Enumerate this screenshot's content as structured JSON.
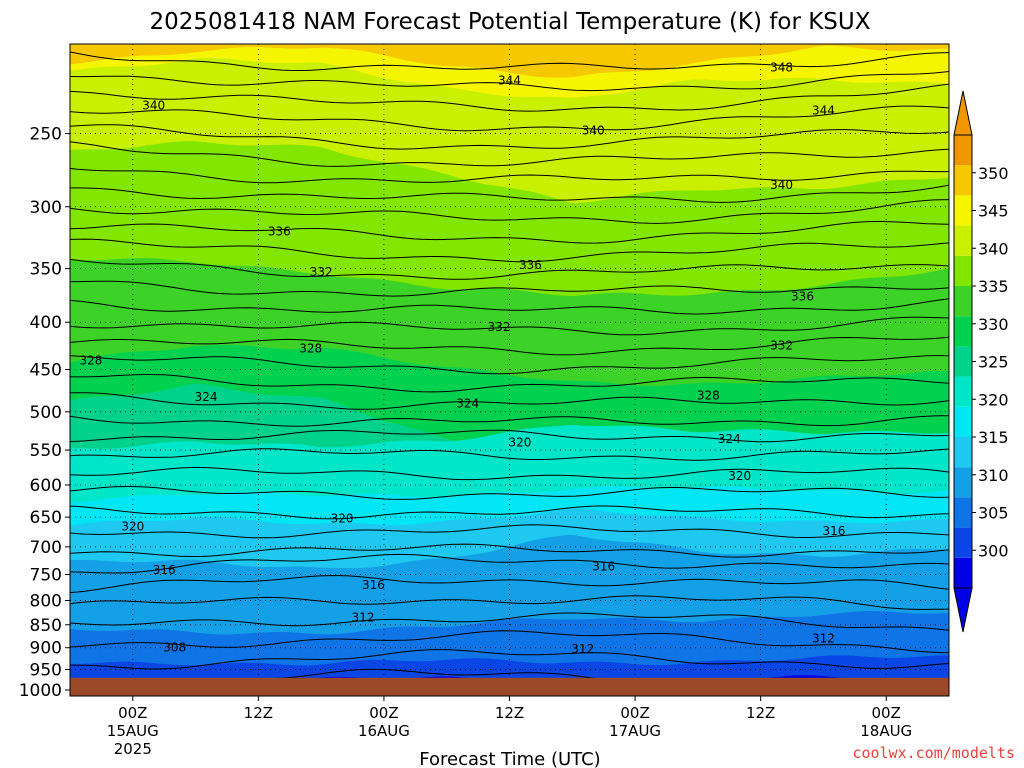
{
  "title": "2025081418 NAM Forecast Potential Temperature (K) for KSUX",
  "credit": "coolwx.com/modelts",
  "colors": {
    "ground": "#9a4a28",
    "levels": [
      "#0000e6",
      "#0a46e6",
      "#0f74e6",
      "#14a0e6",
      "#1ec8f0",
      "#00e6f5",
      "#00e6c8",
      "#00d28c",
      "#00d250",
      "#3cd228",
      "#82e600",
      "#c8f000",
      "#f5f500",
      "#f5c800",
      "#f09600"
    ]
  },
  "chart_data": {
    "type": "contour",
    "title": "2025081418 NAM Forecast Potential Temperature (K) for KSUX",
    "xlabel": "Forecast Time (UTC)",
    "ylabel": "",
    "x_ticks": [
      {
        "label": "00Z",
        "date": "15AUG",
        "year": "2025"
      },
      {
        "label": "12Z",
        "date": "",
        "year": ""
      },
      {
        "label": "00Z",
        "date": "16AUG",
        "year": ""
      },
      {
        "label": "12Z",
        "date": "",
        "year": ""
      },
      {
        "label": "00Z",
        "date": "17AUG",
        "year": ""
      },
      {
        "label": "12Z",
        "date": "",
        "year": ""
      },
      {
        "label": "00Z",
        "date": "18AUG",
        "year": ""
      }
    ],
    "x_range_hours": [
      -6,
      78
    ],
    "x_tick_hours": [
      0,
      12,
      24,
      36,
      48,
      60,
      72
    ],
    "y_axis": "pressure (hPa), log scale, inverted",
    "y_ticks": [
      250,
      300,
      350,
      400,
      450,
      500,
      550,
      600,
      650,
      700,
      750,
      800,
      850,
      900,
      950,
      1000
    ],
    "y_range": [
      1015,
      200
    ],
    "surface_pressure_hPa": 970,
    "colorbar": {
      "labels": [
        300,
        305,
        310,
        315,
        320,
        325,
        330,
        335,
        340,
        345,
        350
      ],
      "min": 295,
      "max": 355,
      "extend": "both"
    },
    "contour_levels_K": [
      304,
      308,
      312,
      316,
      320,
      324,
      328,
      332,
      336,
      340,
      344,
      348
    ],
    "contour_labels": [
      {
        "text": "348",
        "hour": 62,
        "p": 212
      },
      {
        "text": "344",
        "hour": 36,
        "p": 219
      },
      {
        "text": "344",
        "hour": 66,
        "p": 236
      },
      {
        "text": "340",
        "hour": 2,
        "p": 233
      },
      {
        "text": "340",
        "hour": 44,
        "p": 248
      },
      {
        "text": "340",
        "hour": 62,
        "p": 284
      },
      {
        "text": "336",
        "hour": 14,
        "p": 319
      },
      {
        "text": "336",
        "hour": 38,
        "p": 347
      },
      {
        "text": "336",
        "hour": 64,
        "p": 375
      },
      {
        "text": "332",
        "hour": 18,
        "p": 353
      },
      {
        "text": "332",
        "hour": 35,
        "p": 405
      },
      {
        "text": "332",
        "hour": 62,
        "p": 424
      },
      {
        "text": "328",
        "hour": -4,
        "p": 440
      },
      {
        "text": "328",
        "hour": 17,
        "p": 427
      },
      {
        "text": "328",
        "hour": 55,
        "p": 480
      },
      {
        "text": "324",
        "hour": 7,
        "p": 482
      },
      {
        "text": "324",
        "hour": 32,
        "p": 490
      },
      {
        "text": "324",
        "hour": 57,
        "p": 535
      },
      {
        "text": "320",
        "hour": 37,
        "p": 540
      },
      {
        "text": "320",
        "hour": 58,
        "p": 587
      },
      {
        "text": "320",
        "hour": 0,
        "p": 665
      },
      {
        "text": "320",
        "hour": 20,
        "p": 652
      },
      {
        "text": "316",
        "hour": 67,
        "p": 673
      },
      {
        "text": "316",
        "hour": 45,
        "p": 735
      },
      {
        "text": "316",
        "hour": 3,
        "p": 742
      },
      {
        "text": "316",
        "hour": 23,
        "p": 770
      },
      {
        "text": "312",
        "hour": 22,
        "p": 835
      },
      {
        "text": "312",
        "hour": 43,
        "p": 903
      },
      {
        "text": "312",
        "hour": 66,
        "p": 880
      },
      {
        "text": "308",
        "hour": 4,
        "p": 900
      }
    ],
    "grid": true
  }
}
